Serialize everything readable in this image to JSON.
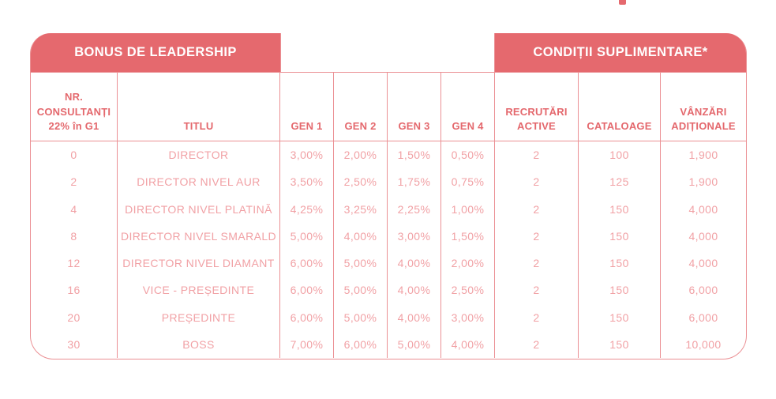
{
  "colors": {
    "band_red": "#E5696E",
    "header_text": "#E4686D",
    "data_text": "#F1A1A5",
    "grid_border": "#EB9094",
    "band_text": "#FFFFFF"
  },
  "bands": {
    "left_title": "BONUS DE LEADERSHIP",
    "right_title": "CONDIȚII SUPLIMENTARE*"
  },
  "table": {
    "columns": [
      {
        "id": "nr-consultanti",
        "lines": [
          "NR.",
          "CONSULTANȚI",
          "22% în G1"
        ]
      },
      {
        "id": "titlu",
        "lines": [
          "TITLU"
        ]
      },
      {
        "id": "gen1",
        "lines": [
          "GEN 1"
        ]
      },
      {
        "id": "gen2",
        "lines": [
          "GEN 2"
        ]
      },
      {
        "id": "gen3",
        "lines": [
          "GEN 3"
        ]
      },
      {
        "id": "gen4",
        "lines": [
          "GEN 4"
        ]
      },
      {
        "id": "recrutari-active",
        "lines": [
          "RECRUTĂRI",
          "ACTIVE"
        ]
      },
      {
        "id": "cataloage",
        "lines": [
          "CATALOAGE"
        ]
      },
      {
        "id": "vanzari-aditionale",
        "lines": [
          "VÂNZĂRI",
          "ADIȚIONALE"
        ]
      }
    ],
    "rows": [
      [
        "0",
        "DIRECTOR",
        "3,00%",
        "2,00%",
        "1,50%",
        "0,50%",
        "2",
        "100",
        "1,900"
      ],
      [
        "2",
        "DIRECTOR NIVEL AUR",
        "3,50%",
        "2,50%",
        "1,75%",
        "0,75%",
        "2",
        "125",
        "1,900"
      ],
      [
        "4",
        "DIRECTOR NIVEL PLATINĂ",
        "4,25%",
        "3,25%",
        "2,25%",
        "1,00%",
        "2",
        "150",
        "4,000"
      ],
      [
        "8",
        "DIRECTOR NIVEL SMARALD",
        "5,00%",
        "4,00%",
        "3,00%",
        "1,50%",
        "2",
        "150",
        "4,000"
      ],
      [
        "12",
        "DIRECTOR NIVEL DIAMANT",
        "6,00%",
        "5,00%",
        "4,00%",
        "2,00%",
        "2",
        "150",
        "4,000"
      ],
      [
        "16",
        "VICE - PREȘEDINTE",
        "6,00%",
        "5,00%",
        "4,00%",
        "2,50%",
        "2",
        "150",
        "6,000"
      ],
      [
        "20",
        "PREȘEDINTE",
        "6,00%",
        "5,00%",
        "4,00%",
        "3,00%",
        "2",
        "150",
        "6,000"
      ],
      [
        "30",
        "BOSS",
        "7,00%",
        "6,00%",
        "5,00%",
        "4,00%",
        "2",
        "150",
        "10,000"
      ]
    ]
  }
}
